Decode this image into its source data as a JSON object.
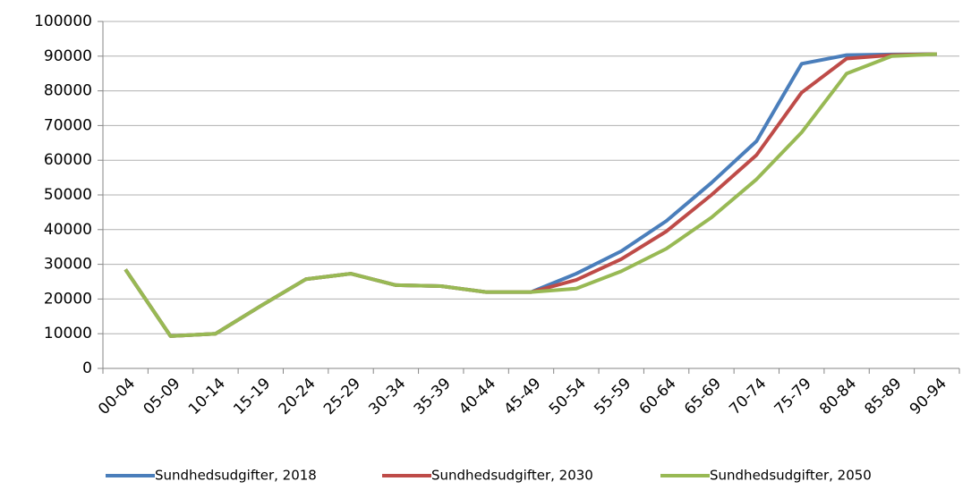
{
  "chart_data": {
    "type": "line",
    "categories": [
      "00-04",
      "05-09",
      "10-14",
      "15-19",
      "20-24",
      "25-29",
      "30-34",
      "35-39",
      "40-44",
      "45-49",
      "50-54",
      "55-59",
      "60-64",
      "65-69",
      "70-74",
      "75-79",
      "80-84",
      "85-89",
      "90-94"
    ],
    "series": [
      {
        "name": "Sundhedsudgifter, 2018",
        "color": "#4a7ebb",
        "values": [
          28500,
          9300,
          10000,
          18000,
          25700,
          27300,
          24000,
          23700,
          22000,
          22000,
          27300,
          33800,
          42500,
          53500,
          65500,
          87800,
          90300,
          90500,
          90600
        ]
      },
      {
        "name": "Sundhedsudgifter, 2030",
        "color": "#be4b48",
        "values": [
          28500,
          9300,
          10000,
          18000,
          25700,
          27300,
          24000,
          23700,
          22000,
          22000,
          25500,
          31500,
          39500,
          50000,
          61500,
          79500,
          89300,
          90300,
          90600
        ]
      },
      {
        "name": "Sundhedsudgifter, 2050",
        "color": "#98b954",
        "values": [
          28500,
          9300,
          10000,
          18000,
          25700,
          27300,
          24000,
          23700,
          22000,
          22000,
          23000,
          28000,
          34500,
          43500,
          54500,
          68000,
          85000,
          90000,
          90600
        ]
      }
    ],
    "ylim": [
      0,
      100000
    ],
    "yticks": [
      0,
      10000,
      20000,
      30000,
      40000,
      50000,
      60000,
      70000,
      80000,
      90000,
      100000
    ],
    "grid": true
  }
}
